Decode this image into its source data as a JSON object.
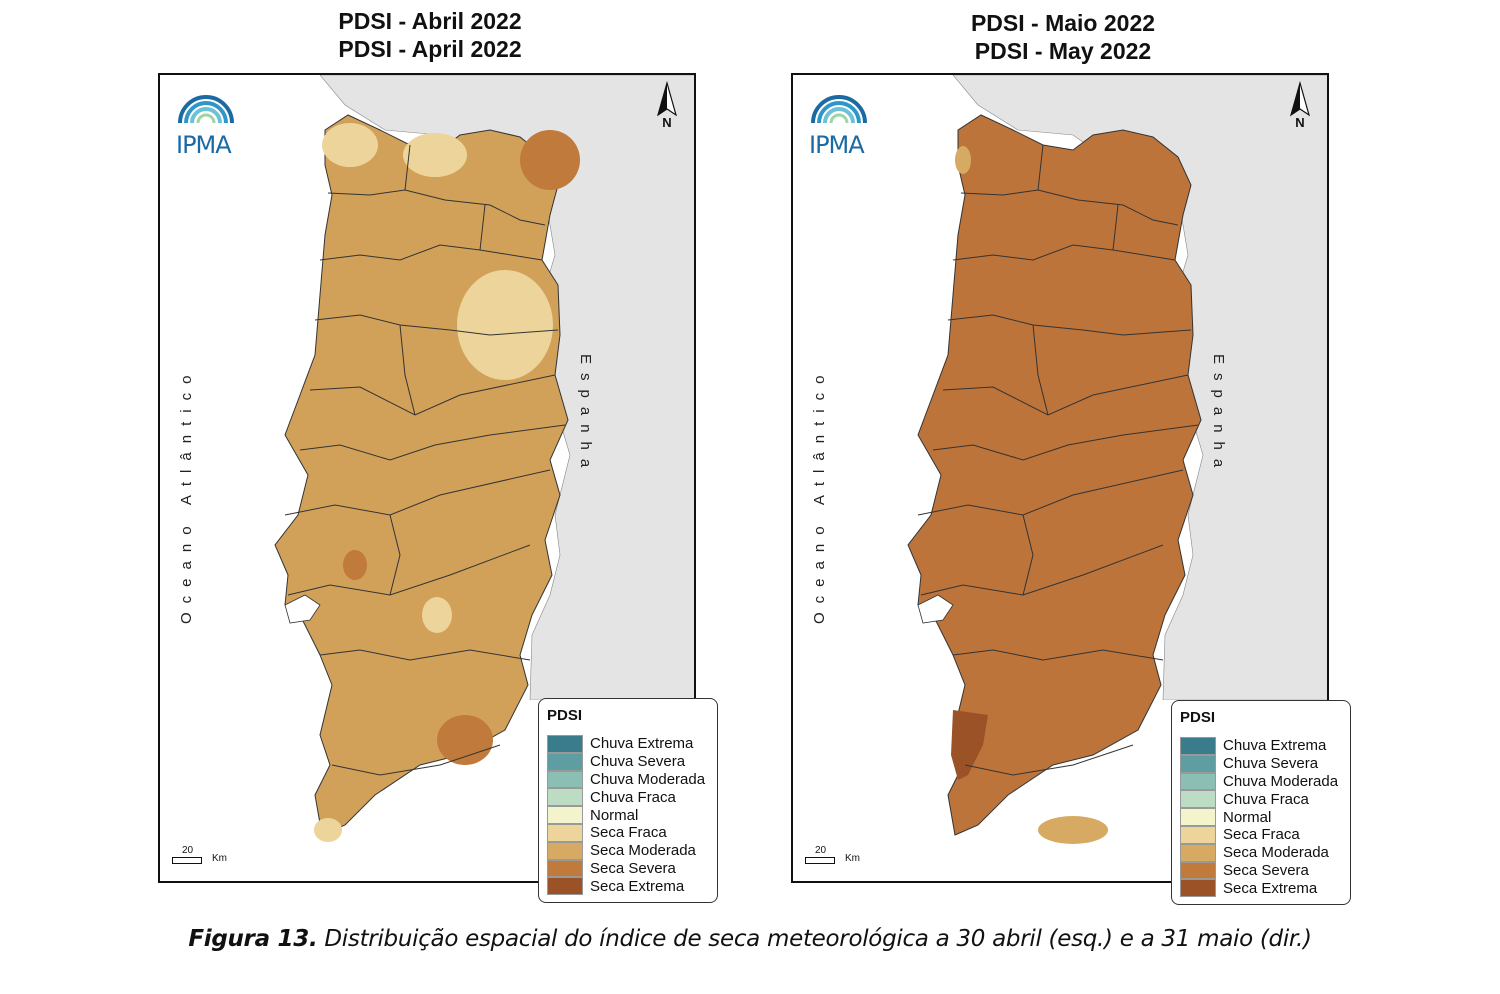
{
  "maps": [
    {
      "title_line1": "PDSI - Abril 2022",
      "title_line2": "PDSI - April 2022",
      "dominant_class": "Seca Moderada",
      "fill_color": "#d1a15a"
    },
    {
      "title_line1": "PDSI - Maio 2022",
      "title_line2": "PDSI - May 2022",
      "dominant_class": "Seca Severa",
      "fill_color": "#bd743b"
    }
  ],
  "logo_text": "IPMA",
  "north_label": "N",
  "ocean_label": "Oceano Atlântico",
  "spain_label": "Espanha",
  "scale": {
    "value": "20",
    "unit": "Km"
  },
  "legend": {
    "title": "PDSI",
    "items": [
      {
        "label": "Chuva Extrema",
        "color": "#3a7b8c"
      },
      {
        "label": "Chuva Severa",
        "color": "#5e9ea3"
      },
      {
        "label": "Chuva Moderada",
        "color": "#8cbfb4"
      },
      {
        "label": "Chuva Fraca",
        "color": "#bcdcc4"
      },
      {
        "label": "Normal",
        "color": "#f4f4cc"
      },
      {
        "label": "Seca Fraca",
        "color": "#ecd49a"
      },
      {
        "label": "Seca Moderada",
        "color": "#d6aa62"
      },
      {
        "label": "Seca Severa",
        "color": "#c07a3c"
      },
      {
        "label": "Seca Extrema",
        "color": "#9b5226"
      }
    ]
  },
  "caption": {
    "bold": "Figura 13.",
    "text": " Distribuição espacial do índice de seca meteorológica a 30 abril (esq.) e a 31 maio (dir.)"
  }
}
